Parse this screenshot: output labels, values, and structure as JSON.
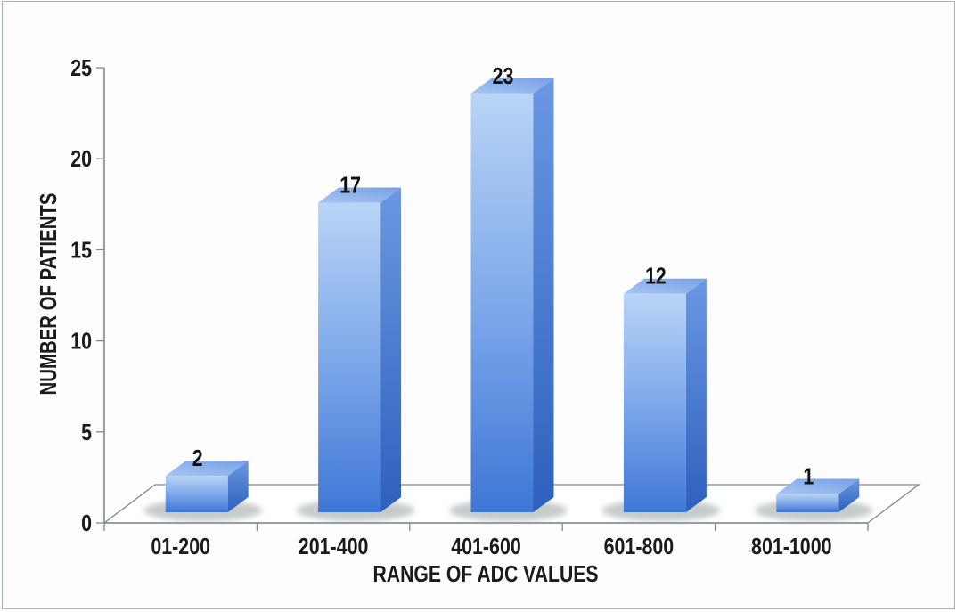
{
  "chart_data": {
    "type": "bar",
    "projection": "3d",
    "title": "",
    "xlabel": "RANGE OF ADC VALUES",
    "ylabel": "NUMBER OF PATIENTS",
    "categories": [
      "01-200",
      "201-400",
      "401-600",
      "601-800",
      "801-1000"
    ],
    "values": [
      2,
      17,
      23,
      12,
      1
    ],
    "bar_value_labels": [
      "2",
      "17",
      "23",
      "12",
      "1"
    ],
    "yticks": [
      0,
      5,
      10,
      15,
      20,
      25
    ],
    "ylim": [
      0,
      25
    ],
    "grid": false,
    "legend": false,
    "colors": {
      "bar_front_top": "#b9d4f6",
      "bar_front_mid": "#7ea9ea",
      "bar_front_bottom": "#3f77d7",
      "bar_top_light": "#a6c6f2",
      "bar_top_dark": "#7aa3e7",
      "bar_side_top": "#6a98e2",
      "bar_side_bottom": "#2e60bd",
      "axis_line": "#7d8b8b",
      "label_text": "#1b1b1b",
      "background": "#fdfdfd",
      "frame_border": "#a9b2b2",
      "shadow": "#8d9797"
    }
  }
}
